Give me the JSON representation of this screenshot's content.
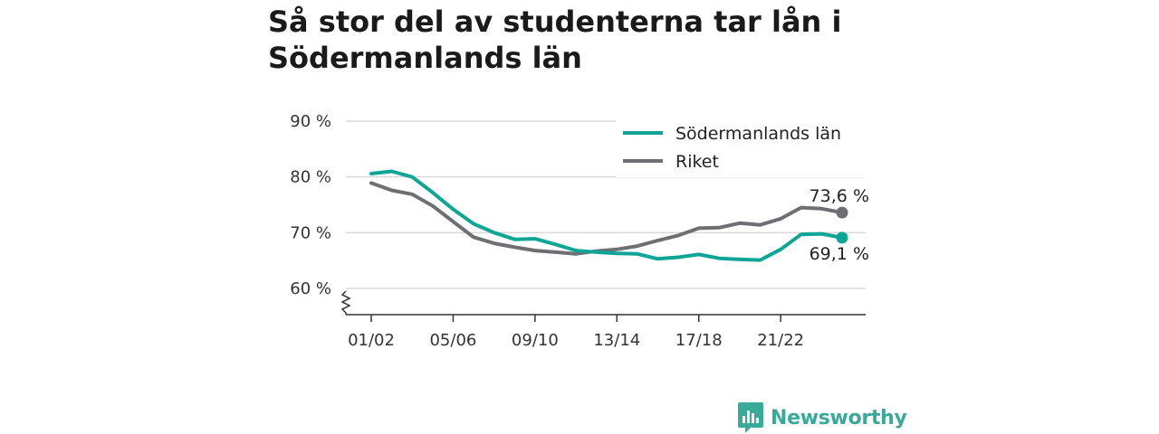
{
  "title": "Så stor del av studenterna tar lån i Södermanlands län",
  "brand": {
    "name": "Newsworthy",
    "icon": "bar-chart-speech-bubble-icon",
    "color": "#3aa99a"
  },
  "chart_data": {
    "type": "line",
    "ylim": [
      60,
      90
    ],
    "y_ticks": [
      60,
      70,
      80,
      90
    ],
    "y_tick_labels": [
      "60 %",
      "70 %",
      "80 %",
      "90 %"
    ],
    "y_axis_break": true,
    "x": [
      "01/02",
      "02/03",
      "03/04",
      "04/05",
      "05/06",
      "06/07",
      "07/08",
      "08/09",
      "09/10",
      "10/11",
      "11/12",
      "12/13",
      "13/14",
      "14/15",
      "15/16",
      "16/17",
      "17/18",
      "18/19",
      "19/20",
      "20/21",
      "21/22",
      "22/23",
      "23/24",
      "24/25"
    ],
    "x_tick_labels": [
      "01/02",
      "05/06",
      "09/10",
      "13/14",
      "17/18",
      "21/22"
    ],
    "grid": true,
    "legend_position": "top-right",
    "series": [
      {
        "name": "Södermanlands län",
        "color": "#0fa596",
        "values": [
          80.6,
          81.0,
          80.0,
          77.2,
          74.2,
          71.6,
          70.0,
          68.8,
          68.9,
          67.9,
          66.8,
          66.5,
          66.3,
          66.2,
          65.3,
          65.6,
          66.1,
          65.4,
          65.2,
          65.1,
          67.0,
          69.7,
          69.8,
          69.1
        ],
        "end_label": "69,1 %"
      },
      {
        "name": "Riket",
        "color": "#6e6e73",
        "values": [
          78.9,
          77.6,
          76.9,
          74.8,
          72.0,
          69.2,
          68.1,
          67.4,
          66.8,
          66.5,
          66.2,
          66.7,
          67.0,
          67.6,
          68.6,
          69.5,
          70.8,
          70.9,
          71.7,
          71.4,
          72.5,
          74.5,
          74.3,
          73.6
        ],
        "end_label": "73,6 %"
      }
    ]
  }
}
